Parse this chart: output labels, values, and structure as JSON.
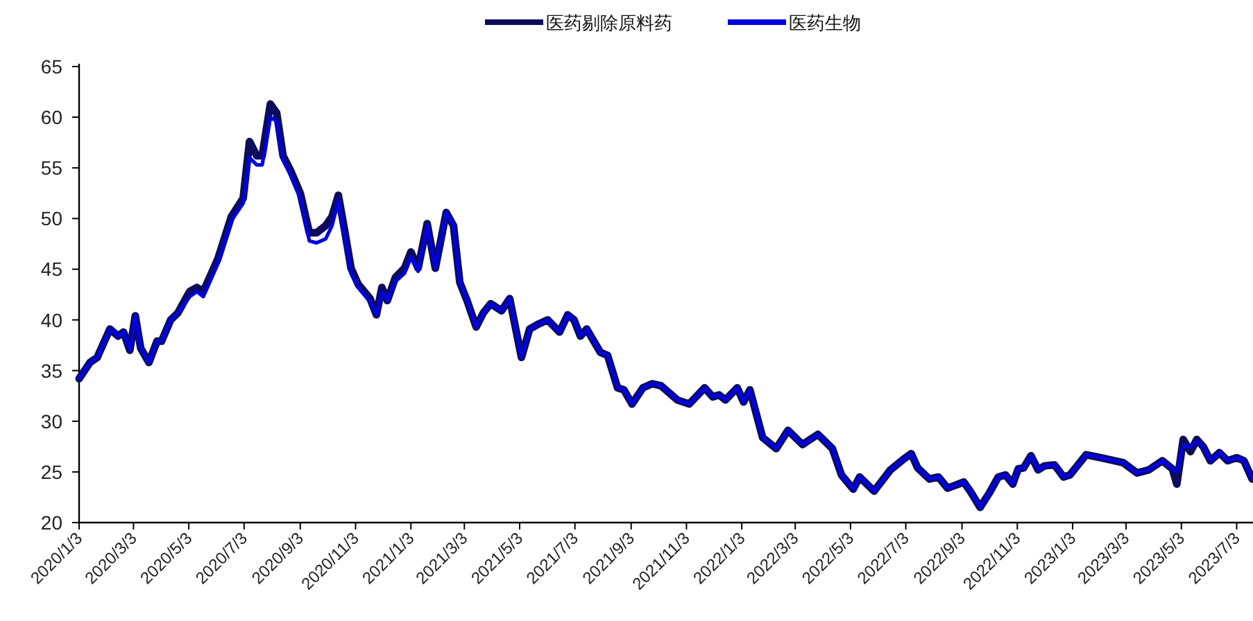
{
  "chart_data": {
    "type": "line",
    "legend": "top",
    "marker": "none",
    "line_style": "solid",
    "grid": false,
    "x": [
      "2020-01-03",
      "2020-01-15",
      "2020-01-23",
      "2020-02-06",
      "2020-02-15",
      "2020-02-21",
      "2020-02-28",
      "2020-03-05",
      "2020-03-11",
      "2020-03-20",
      "2020-03-29",
      "2020-04-03",
      "2020-04-13",
      "2020-04-21",
      "2020-05-04",
      "2020-05-12",
      "2020-05-19",
      "2020-06-04",
      "2020-06-19",
      "2020-07-02",
      "2020-07-09",
      "2020-07-17",
      "2020-07-23",
      "2020-08-01",
      "2020-08-08",
      "2020-08-15",
      "2020-08-24",
      "2020-09-03",
      "2020-09-13",
      "2020-09-21",
      "2020-10-01",
      "2020-10-08",
      "2020-10-15",
      "2020-10-22",
      "2020-10-29",
      "2020-11-06",
      "2020-11-19",
      "2020-11-26",
      "2020-12-02",
      "2020-12-08",
      "2020-12-17",
      "2020-12-27",
      "2021-01-03",
      "2021-01-11",
      "2021-01-21",
      "2021-01-30",
      "2021-02-11",
      "2021-02-19",
      "2021-02-26",
      "2021-03-06",
      "2021-03-16",
      "2021-03-24",
      "2021-04-01",
      "2021-04-13",
      "2021-04-22",
      "2021-05-05",
      "2021-05-14",
      "2021-05-24",
      "2021-06-03",
      "2021-06-16",
      "2021-06-25",
      "2021-07-02",
      "2021-07-09",
      "2021-07-16",
      "2021-07-31",
      "2021-08-08",
      "2021-08-19",
      "2021-08-26",
      "2021-09-04",
      "2021-09-16",
      "2021-09-26",
      "2021-10-06",
      "2021-10-24",
      "2021-11-06",
      "2021-11-23",
      "2021-12-02",
      "2021-12-09",
      "2021-12-16",
      "2021-12-29",
      "2022-01-05",
      "2022-01-12",
      "2022-01-26",
      "2022-02-10",
      "2022-02-23",
      "2022-03-11",
      "2022-03-28",
      "2022-04-13",
      "2022-04-23",
      "2022-05-06",
      "2022-05-13",
      "2022-05-29",
      "2022-06-16",
      "2022-07-01",
      "2022-07-09",
      "2022-07-16",
      "2022-07-29",
      "2022-08-08",
      "2022-08-18",
      "2022-09-05",
      "2022-09-12",
      "2022-09-23",
      "2022-10-03",
      "2022-10-13",
      "2022-10-21",
      "2022-10-29",
      "2022-11-04",
      "2022-11-10",
      "2022-11-18",
      "2022-11-26",
      "2022-12-03",
      "2022-12-14",
      "2022-12-24",
      "2022-12-31",
      "2023-01-18",
      "2023-02-03",
      "2023-02-28",
      "2023-03-15",
      "2023-03-28",
      "2023-04-12",
      "2023-04-23",
      "2023-04-28",
      "2023-05-05",
      "2023-05-13",
      "2023-05-20",
      "2023-05-27",
      "2023-06-04",
      "2023-06-14",
      "2023-06-23",
      "2023-07-03",
      "2023-07-11",
      "2023-07-20"
    ],
    "series": [
      {
        "name": "医药剔除原料药",
        "color": "#0c0c5a",
        "values": [
          34.2,
          35.8,
          36.3,
          39.1,
          38.4,
          38.8,
          37.0,
          40.4,
          37.2,
          35.8,
          37.9,
          37.9,
          40.0,
          40.7,
          42.8,
          43.2,
          42.8,
          46.0,
          50.2,
          52.0,
          57.6,
          56.2,
          56.2,
          61.3,
          60.4,
          56.2,
          54.6,
          52.5,
          48.6,
          48.6,
          49.3,
          50.2,
          52.3,
          48.8,
          45.1,
          43.5,
          42.1,
          40.5,
          43.2,
          41.9,
          44.2,
          45.1,
          46.7,
          45.1,
          49.5,
          45.1,
          50.6,
          49.3,
          43.7,
          41.9,
          39.3,
          40.7,
          41.6,
          40.9,
          42.1,
          36.3,
          39.1,
          39.6,
          40.0,
          38.8,
          40.5,
          40.0,
          38.4,
          39.1,
          36.8,
          36.5,
          33.3,
          33.1,
          31.7,
          33.3,
          33.7,
          33.5,
          32.1,
          31.7,
          33.3,
          32.4,
          32.6,
          32.1,
          33.3,
          31.9,
          33.1,
          28.4,
          27.3,
          29.1,
          27.7,
          28.7,
          27.3,
          24.7,
          23.3,
          24.5,
          23.1,
          25.2,
          26.3,
          26.8,
          25.4,
          24.3,
          24.5,
          23.4,
          24.0,
          23.1,
          21.5,
          22.9,
          24.5,
          24.7,
          23.8,
          25.3,
          25.4,
          26.6,
          25.2,
          25.6,
          25.7,
          24.5,
          24.7,
          26.7,
          26.4,
          25.9,
          24.9,
          25.2,
          26.1,
          25.3,
          23.8,
          28.2,
          27.0,
          28.2,
          27.5,
          26.1,
          26.9,
          26.1,
          26.4,
          26.1,
          24.3
        ]
      },
      {
        "name": "医药生物",
        "color": "#0000e0",
        "values": [
          34.2,
          35.8,
          36.3,
          39.1,
          38.4,
          38.8,
          37.0,
          40.4,
          37.2,
          35.8,
          37.9,
          37.9,
          40.0,
          40.7,
          42.3,
          42.8,
          42.3,
          45.6,
          49.8,
          51.5,
          56.0,
          55.3,
          55.3,
          60.0,
          59.6,
          55.8,
          54.2,
          52.0,
          47.8,
          47.6,
          48.0,
          49.3,
          51.8,
          48.3,
          44.6,
          43.2,
          41.8,
          40.5,
          42.8,
          41.9,
          43.8,
          44.6,
          46.2,
          44.8,
          49.3,
          45.1,
          50.6,
          49.3,
          43.7,
          41.9,
          39.3,
          40.7,
          41.6,
          40.9,
          42.1,
          36.3,
          39.1,
          39.6,
          40.0,
          38.8,
          40.5,
          40.0,
          38.4,
          39.1,
          36.8,
          36.5,
          33.3,
          33.1,
          31.7,
          33.3,
          33.7,
          33.5,
          32.1,
          31.7,
          33.3,
          32.4,
          32.6,
          32.1,
          33.3,
          31.9,
          33.1,
          28.4,
          27.3,
          29.1,
          27.7,
          28.7,
          27.3,
          24.7,
          23.3,
          24.5,
          23.1,
          25.2,
          26.3,
          26.8,
          25.4,
          24.3,
          24.5,
          23.4,
          24.0,
          23.1,
          21.5,
          22.9,
          24.5,
          24.7,
          23.8,
          25.3,
          25.4,
          26.6,
          25.2,
          25.6,
          25.7,
          24.5,
          24.7,
          26.7,
          26.4,
          25.9,
          24.9,
          25.2,
          26.1,
          25.3,
          25.0,
          27.6,
          27.5,
          28.0,
          27.5,
          26.1,
          26.9,
          26.1,
          26.4,
          26.1,
          24.3
        ]
      }
    ],
    "xlim": [
      "2020-01-03",
      "2023-07-21"
    ],
    "xticks": [
      {
        "value": "2020-01-03",
        "label": "2020/1/3"
      },
      {
        "value": "2020-03-03",
        "label": "2020/3/3"
      },
      {
        "value": "2020-05-03",
        "label": "2020/5/3"
      },
      {
        "value": "2020-07-03",
        "label": "2020/7/3"
      },
      {
        "value": "2020-09-03",
        "label": "2020/9/3"
      },
      {
        "value": "2020-11-03",
        "label": "2020/11/3"
      },
      {
        "value": "2021-01-03",
        "label": "2021/1/3"
      },
      {
        "value": "2021-03-03",
        "label": "2021/3/3"
      },
      {
        "value": "2021-05-03",
        "label": "2021/5/3"
      },
      {
        "value": "2021-07-03",
        "label": "2021/7/3"
      },
      {
        "value": "2021-09-03",
        "label": "2021/9/3"
      },
      {
        "value": "2021-11-03",
        "label": "2021/11/3"
      },
      {
        "value": "2022-01-03",
        "label": "2022/1/3"
      },
      {
        "value": "2022-03-03",
        "label": "2022/3/3"
      },
      {
        "value": "2022-05-03",
        "label": "2022/5/3"
      },
      {
        "value": "2022-07-03",
        "label": "2022/7/3"
      },
      {
        "value": "2022-09-03",
        "label": "2022/9/3"
      },
      {
        "value": "2022-11-03",
        "label": "2022/11/3"
      },
      {
        "value": "2023-01-03",
        "label": "2023/1/3"
      },
      {
        "value": "2023-03-03",
        "label": "2023/3/3"
      },
      {
        "value": "2023-05-03",
        "label": "2023/5/3"
      },
      {
        "value": "2023-07-03",
        "label": "2023/7/3"
      }
    ],
    "ylim": [
      20,
      65
    ],
    "yticks": [
      20,
      25,
      30,
      35,
      40,
      45,
      50,
      55,
      60,
      65
    ]
  }
}
